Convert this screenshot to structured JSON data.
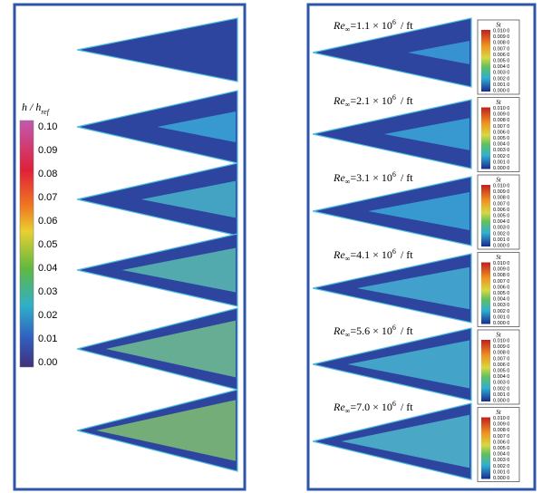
{
  "left_panel": {
    "colorbar_title": "h / h",
    "colorbar_title_sub": "ref",
    "colorbar_ticks": [
      "0.10",
      "0.09",
      "0.08",
      "0.07",
      "0.06",
      "0.05",
      "0.04",
      "0.03",
      "0.02",
      "0.01",
      "0.00"
    ]
  },
  "right_panel": {
    "panels": [
      {
        "label": "Re",
        "label_sub": "∞",
        "value": "=1.1 × 10",
        "exponent": "6",
        "unit": "/ ft"
      },
      {
        "label": "Re",
        "label_sub": "∞",
        "value": "=2.1 × 10",
        "exponent": "6",
        "unit": "/ ft"
      },
      {
        "label": "Re",
        "label_sub": "∞",
        "value": "=3.1 × 10",
        "exponent": "6",
        "unit": "/ ft"
      },
      {
        "label": "Re",
        "label_sub": "∞",
        "value": "=4.1 × 10",
        "exponent": "6",
        "unit": "/ ft"
      },
      {
        "label": "Re",
        "label_sub": "∞",
        "value": "=5.6 × 10",
        "exponent": "6",
        "unit": "/ ft"
      },
      {
        "label": "Re",
        "label_sub": "∞",
        "value": "=7.0 × 10",
        "exponent": "6",
        "unit": "/ ft"
      }
    ],
    "colorbar_title": "St",
    "colorbar_ticks": [
      "0.010 0",
      "0.009 0",
      "0.008 0",
      "0.007 0",
      "0.006 0",
      "0.005 0",
      "0.004 0",
      "0.003 0",
      "0.002 0",
      "0.001 0",
      "0.000 0"
    ]
  }
}
